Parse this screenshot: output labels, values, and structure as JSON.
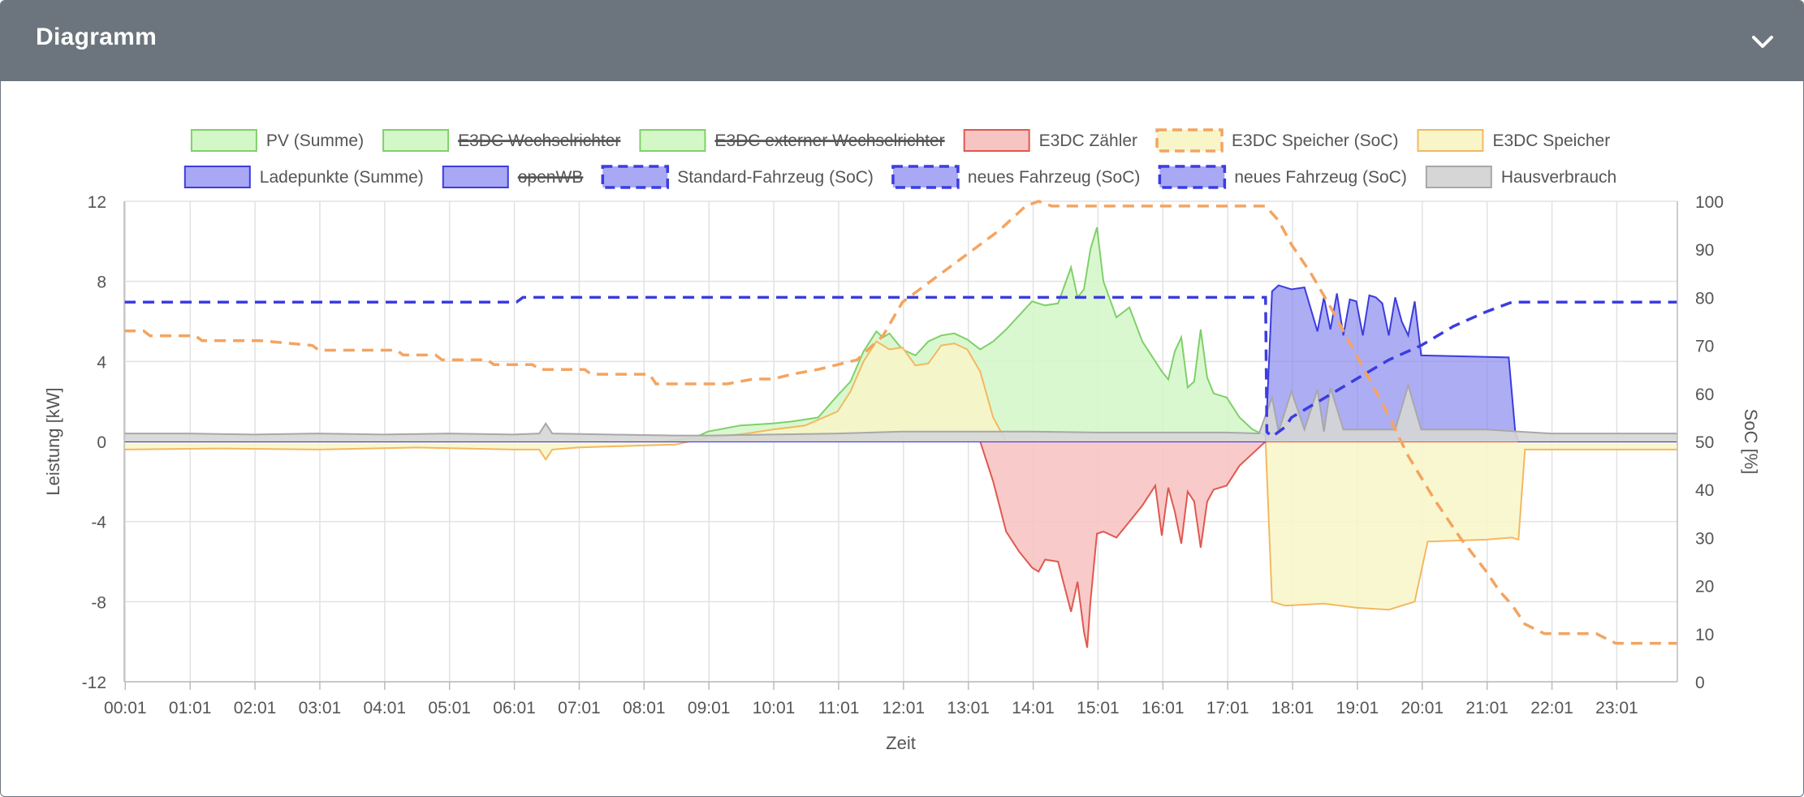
{
  "header": {
    "title": "Diagramm",
    "collapse_icon": "chevron-down-icon"
  },
  "chart_data": {
    "type": "area",
    "xlabel": "Zeit",
    "ylabel": "Leistung [kW]",
    "y2label": "SoC [%]",
    "ylim": [
      -12,
      12
    ],
    "y2lim": [
      0,
      100
    ],
    "yticks": [
      "12",
      "8",
      "4",
      "0",
      "-4",
      "-8",
      "-12"
    ],
    "y2ticks": [
      "100",
      "90",
      "80",
      "70",
      "60",
      "50",
      "40",
      "30",
      "20",
      "10",
      "0"
    ],
    "xticks": [
      "00:01",
      "01:01",
      "02:01",
      "03:01",
      "04:01",
      "05:01",
      "06:01",
      "07:01",
      "08:01",
      "09:01",
      "10:01",
      "11:01",
      "12:01",
      "13:01",
      "14:01",
      "15:01",
      "16:01",
      "17:01",
      "18:01",
      "19:01",
      "20:01",
      "21:01",
      "22:01",
      "23:01"
    ],
    "xrange_hours": [
      0.0,
      23.95
    ],
    "grid": true,
    "legend_position": "top",
    "legend": [
      {
        "label": "PV (Summe)",
        "fill": "#d4f7c8",
        "stroke": "#7fd06a",
        "style": "solid",
        "hidden": false
      },
      {
        "label": "E3DC Wechselrichter",
        "fill": "#d4f7c8",
        "stroke": "#7fd06a",
        "style": "solid",
        "hidden": true
      },
      {
        "label": "E3DC externer Wechselrichter",
        "fill": "#d4f7c8",
        "stroke": "#7fd06a",
        "style": "solid",
        "hidden": true
      },
      {
        "label": "E3DC Zähler",
        "fill": "#f7c4c4",
        "stroke": "#e0584f",
        "style": "solid",
        "hidden": false
      },
      {
        "label": "E3DC Speicher (SoC)",
        "fill": "#f8f6c8",
        "stroke": "#f4a460",
        "style": "dashed",
        "hidden": false
      },
      {
        "label": "E3DC Speicher",
        "fill": "#f8f6c8",
        "stroke": "#f4b860",
        "style": "solid",
        "hidden": false
      },
      {
        "label": "Ladepunkte (Summe)",
        "fill": "#a8a8f5",
        "stroke": "#3c3ce0",
        "style": "solid",
        "hidden": false
      },
      {
        "label": "openWB",
        "fill": "#a8a8f5",
        "stroke": "#3c3ce0",
        "style": "solid",
        "hidden": true
      },
      {
        "label": "Standard-Fahrzeug (SoC)",
        "fill": "#a8a8f5",
        "stroke": "#3c3ce0",
        "style": "dashed",
        "hidden": false
      },
      {
        "label": "neues Fahrzeug (SoC)",
        "fill": "#a8a8f5",
        "stroke": "#3c3ce0",
        "style": "dashed",
        "hidden": false
      },
      {
        "label": "neues Fahrzeug (SoC)",
        "fill": "#a8a8f5",
        "stroke": "#3c3ce0",
        "style": "dashed",
        "hidden": false
      },
      {
        "label": "Hausverbrauch",
        "fill": "#d6d6d6",
        "stroke": "#a8a8a8",
        "style": "solid",
        "hidden": false
      }
    ],
    "series": [
      {
        "name": "PV (Summe)",
        "axis": "left",
        "kind": "area",
        "color": "#7fd06a",
        "fill": "#d4f7c8",
        "opacity": 0.85,
        "x": [
          0,
          8.3,
          8.8,
          9.0,
          9.5,
          10.0,
          10.3,
          10.7,
          11.0,
          11.2,
          11.4,
          11.6,
          11.7,
          11.8,
          11.9,
          12.0,
          12.2,
          12.4,
          12.6,
          12.8,
          13.0,
          13.2,
          13.4,
          13.6,
          13.8,
          14.0,
          14.2,
          14.4,
          14.5,
          14.6,
          14.7,
          14.8,
          14.9,
          15.0,
          15.1,
          15.3,
          15.5,
          15.7,
          15.9,
          16.0,
          16.1,
          16.2,
          16.3,
          16.4,
          16.5,
          16.6,
          16.7,
          16.8,
          17.0,
          17.2,
          17.4,
          17.6,
          17.8,
          18.0,
          23.95
        ],
        "y": [
          0,
          0,
          0.2,
          0.5,
          0.8,
          0.9,
          1.0,
          1.2,
          2.3,
          3.0,
          4.5,
          5.5,
          5.2,
          5.4,
          5.0,
          4.6,
          4.3,
          5.0,
          5.3,
          5.4,
          5.1,
          4.6,
          5.0,
          5.6,
          6.3,
          7.0,
          6.8,
          6.9,
          7.8,
          8.7,
          7.2,
          7.6,
          9.6,
          10.7,
          8.0,
          6.2,
          6.7,
          5.0,
          4.0,
          3.5,
          3.1,
          4.5,
          5.2,
          2.7,
          3.0,
          5.6,
          3.2,
          2.4,
          2.2,
          1.2,
          0.6,
          0.3,
          0.1,
          0,
          0
        ]
      },
      {
        "name": "E3DC Speicher",
        "axis": "left",
        "kind": "area",
        "color": "#f4b860",
        "fill": "#f8f6c8",
        "opacity": 0.85,
        "x": [
          0,
          1.5,
          3.0,
          4.5,
          6.0,
          6.4,
          6.5,
          6.6,
          7.0,
          8.0,
          8.5,
          9.0,
          9.3,
          9.6,
          10.0,
          10.5,
          11.0,
          11.2,
          11.4,
          11.6,
          11.8,
          12.0,
          12.2,
          12.4,
          12.6,
          12.8,
          13.0,
          13.2,
          13.4,
          13.6,
          17.6,
          17.7,
          17.9,
          18.5,
          19.0,
          19.5,
          19.9,
          20.0,
          20.1,
          21.0,
          21.4,
          21.5,
          21.6,
          22.0,
          23.95
        ],
        "y": [
          -0.4,
          -0.35,
          -0.4,
          -0.3,
          -0.4,
          -0.4,
          -0.9,
          -0.4,
          -0.3,
          -0.2,
          -0.15,
          0.2,
          0.3,
          0.4,
          0.6,
          0.8,
          1.5,
          2.5,
          4.0,
          5.0,
          4.6,
          4.7,
          3.8,
          3.9,
          4.8,
          4.9,
          4.6,
          3.5,
          1.2,
          0,
          0,
          -8.0,
          -8.2,
          -8.1,
          -8.3,
          -8.4,
          -8.0,
          -6.5,
          -5.0,
          -4.9,
          -4.8,
          -4.9,
          -0.4,
          -0.4,
          -0.4
        ]
      },
      {
        "name": "E3DC Zähler",
        "axis": "left",
        "kind": "area",
        "color": "#e0584f",
        "fill": "#f7c4c4",
        "opacity": 0.9,
        "x": [
          0,
          13.2,
          13.4,
          13.6,
          13.8,
          14.0,
          14.1,
          14.2,
          14.4,
          14.6,
          14.7,
          14.8,
          14.85,
          14.9,
          15.0,
          15.1,
          15.3,
          15.5,
          15.7,
          15.9,
          16.0,
          16.1,
          16.2,
          16.3,
          16.4,
          16.5,
          16.6,
          16.7,
          16.8,
          17.0,
          17.2,
          17.4,
          17.6,
          23.95
        ],
        "y": [
          0,
          0,
          -2.0,
          -4.5,
          -5.5,
          -6.3,
          -6.5,
          -5.9,
          -6.0,
          -8.5,
          -7.0,
          -9.5,
          -10.3,
          -8.0,
          -4.6,
          -4.5,
          -4.8,
          -4.0,
          -3.2,
          -2.2,
          -4.7,
          -2.3,
          -3.5,
          -5.1,
          -2.5,
          -3.0,
          -5.3,
          -3.0,
          -2.4,
          -2.2,
          -1.2,
          -0.6,
          0,
          0
        ]
      },
      {
        "name": "Ladepunkte (Summe)",
        "axis": "left",
        "kind": "area",
        "color": "#3c3ce0",
        "fill": "#8a8af0",
        "opacity": 0.7,
        "x": [
          0,
          17.6,
          17.7,
          17.8,
          18.0,
          18.2,
          18.4,
          18.5,
          18.6,
          18.7,
          18.8,
          18.9,
          19.0,
          19.1,
          19.2,
          19.3,
          19.4,
          19.5,
          19.6,
          19.7,
          19.8,
          19.9,
          20.0,
          21.35,
          21.45,
          21.5,
          23.95
        ],
        "y": [
          0,
          0,
          7.5,
          7.8,
          7.6,
          7.7,
          5.5,
          7.2,
          5.6,
          7.4,
          5.3,
          7.1,
          7.0,
          5.3,
          7.3,
          7.2,
          6.9,
          5.3,
          7.2,
          6.0,
          5.3,
          7.0,
          4.3,
          4.2,
          0.5,
          0,
          0
        ]
      },
      {
        "name": "Hausverbrauch",
        "axis": "left",
        "kind": "area",
        "color": "#a8a8a8",
        "fill": "#d6d6d6",
        "opacity": 0.9,
        "x": [
          0,
          1.0,
          2.0,
          3.0,
          4.0,
          5.0,
          6.0,
          6.4,
          6.5,
          6.6,
          7.5,
          8.5,
          9.0,
          10.0,
          11.0,
          12.0,
          13.0,
          14.0,
          15.0,
          16.0,
          17.0,
          17.5,
          17.7,
          17.8,
          18.0,
          18.2,
          18.4,
          18.5,
          18.6,
          18.8,
          19.0,
          19.2,
          19.4,
          19.6,
          19.8,
          20.0,
          21.0,
          21.5,
          22.0,
          23.95
        ],
        "y": [
          0.4,
          0.4,
          0.35,
          0.4,
          0.35,
          0.4,
          0.35,
          0.4,
          0.9,
          0.4,
          0.35,
          0.3,
          0.3,
          0.35,
          0.4,
          0.5,
          0.5,
          0.5,
          0.45,
          0.45,
          0.45,
          0.4,
          2.2,
          0.5,
          2.5,
          0.6,
          2.6,
          0.5,
          2.7,
          0.6,
          0.6,
          0.6,
          0.6,
          0.6,
          2.8,
          0.6,
          0.6,
          0.5,
          0.4,
          0.4
        ]
      },
      {
        "name": "E3DC Speicher (SoC)",
        "axis": "right",
        "kind": "line",
        "color": "#f4a460",
        "dash": "14,9",
        "x": [
          0,
          0.3,
          0.4,
          1.1,
          1.2,
          2.0,
          2.1,
          2.9,
          3.0,
          4.2,
          4.3,
          4.8,
          4.9,
          5.6,
          5.7,
          6.3,
          6.4,
          7.1,
          7.2,
          8.1,
          8.2,
          9.0,
          9.3,
          9.7,
          10.0,
          10.3,
          10.7,
          11.0,
          11.3,
          11.7,
          12.0,
          12.5,
          13.0,
          13.5,
          13.9,
          14.1,
          14.3,
          14.6,
          16.0,
          17.0,
          17.2,
          17.6,
          17.8,
          18.0,
          18.3,
          18.6,
          19.0,
          19.4,
          19.8,
          20.2,
          20.6,
          21.0,
          21.2,
          21.4,
          21.6,
          21.9,
          22.3,
          22.7,
          23.0,
          23.95
        ],
        "y": [
          73,
          73,
          72,
          72,
          71,
          71,
          71,
          70,
          69,
          69,
          68,
          68,
          67,
          67,
          66,
          66,
          65,
          65,
          64,
          64,
          62,
          62,
          62,
          63,
          63,
          64,
          65,
          66,
          67,
          72,
          79,
          84,
          89,
          94,
          99,
          100,
          99,
          99,
          99,
          99,
          99,
          99,
          96,
          91,
          85,
          78,
          68,
          58,
          47,
          38,
          30,
          23,
          19,
          16,
          12,
          10,
          10,
          10,
          8,
          8
        ]
      },
      {
        "name": "Standard-Fahrzeug (SoC)",
        "axis": "right",
        "kind": "line",
        "color": "#3c3ce0",
        "dash": "14,9",
        "x": [
          0,
          6.05,
          6.15,
          17.6,
          17.62,
          17.7,
          17.9,
          18.0,
          18.5,
          19.0,
          19.5,
          20.0,
          20.5,
          21.0,
          21.4,
          21.6,
          22.0,
          23.95
        ],
        "y": [
          79,
          79,
          80,
          80,
          52,
          51,
          53,
          55,
          59,
          63,
          67,
          70,
          74,
          77,
          79,
          79,
          79,
          79
        ]
      }
    ]
  }
}
